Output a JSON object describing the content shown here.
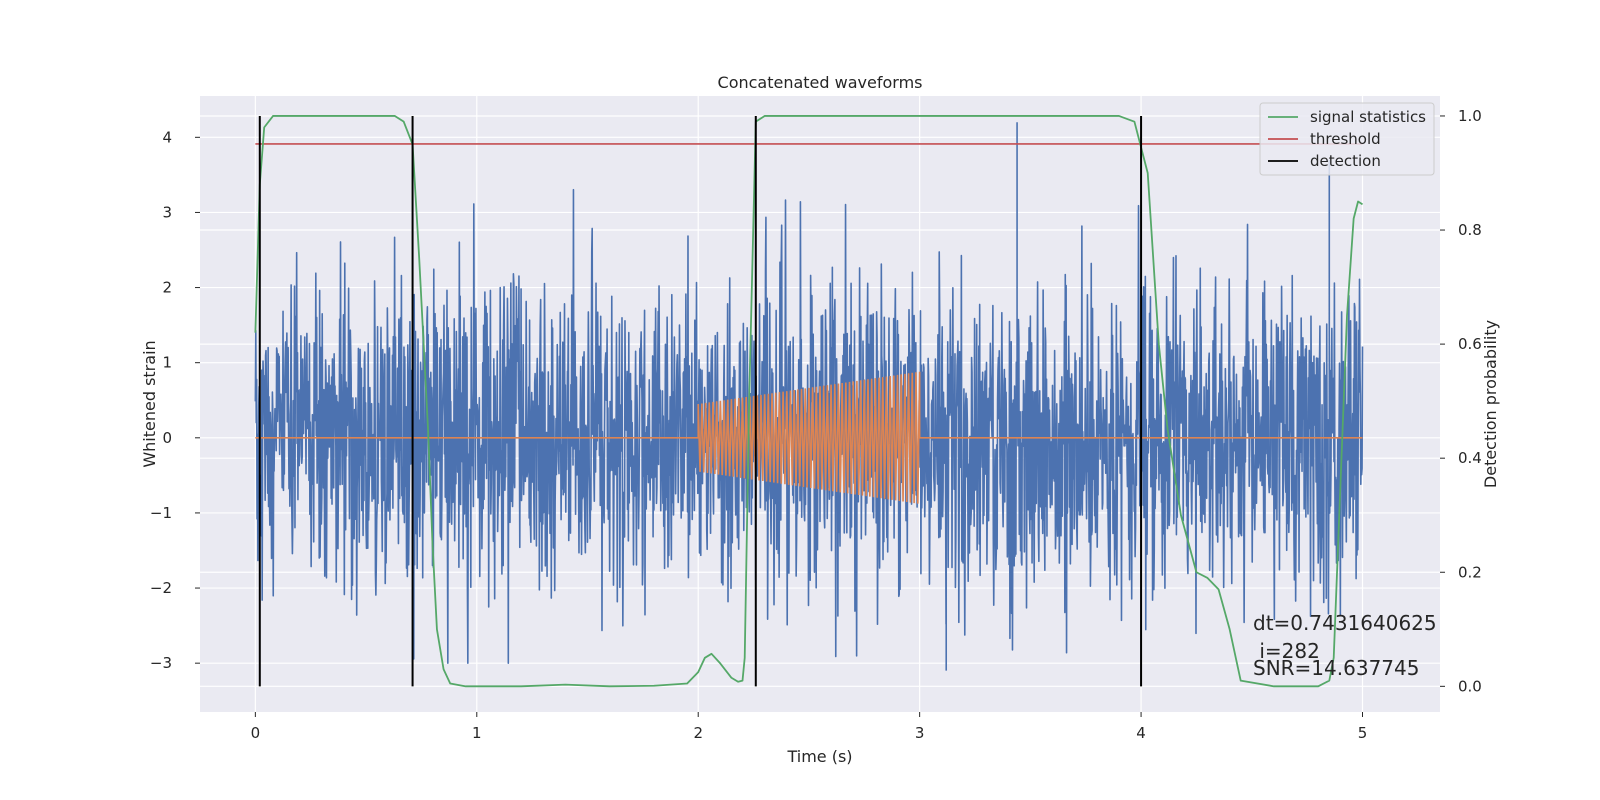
{
  "chart_data": {
    "type": "line",
    "title": "Concatenated waveforms",
    "xlabel": "Time (s)",
    "ylabel": "Whitened strain",
    "y2label": "Detection probability",
    "xlim": [
      -0.25,
      5.35
    ],
    "ylim": [
      -3.65,
      4.55
    ],
    "y2lim": [
      -0.045,
      1.035
    ],
    "xticks": [
      0,
      1,
      2,
      3,
      4,
      5
    ],
    "yticks": [
      -3,
      -2,
      -1,
      0,
      1,
      2,
      3,
      4
    ],
    "y2ticks": [
      0.0,
      0.2,
      0.4,
      0.6,
      0.8,
      1.0
    ],
    "xtick_labels": [
      "0",
      "1",
      "2",
      "3",
      "4",
      "5"
    ],
    "ytick_labels": [
      "−3",
      "−2",
      "−1",
      "0",
      "1",
      "2",
      "3",
      "4"
    ],
    "y2tick_labels": [
      "0.0",
      "0.2",
      "0.4",
      "0.6",
      "0.8",
      "1.0"
    ],
    "grid": true,
    "legend_position": "top-right",
    "legend": [
      {
        "label": "signal statistics",
        "color": "#55a868"
      },
      {
        "label": "threshold",
        "color": "#c44e52"
      },
      {
        "label": "detection",
        "color": "#000000"
      }
    ],
    "series": [
      {
        "role": "whitened strain (noise)",
        "color": "#4c72b0",
        "axis": "left",
        "x_range": [
          0,
          5
        ],
        "typical_amplitude": 1.0,
        "envelope": [
          -3.0,
          3.5
        ],
        "outliers": [
          {
            "x": 3.44,
            "y": 4.2
          },
          {
            "x": 4.85,
            "y": 3.7
          },
          {
            "x": 3.12,
            "y": -3.1
          }
        ]
      },
      {
        "role": "injected waveform",
        "color": "#dd8452",
        "axis": "left",
        "x_range": [
          0,
          5
        ],
        "chirp_start": 2.0,
        "chirp_end": 3.0,
        "amplitude_start": 0.45,
        "amplitude_end": 0.88
      },
      {
        "name": "signal statistics",
        "color": "#55a868",
        "axis": "right",
        "x": [
          0.0,
          0.02,
          0.04,
          0.08,
          0.15,
          0.3,
          0.5,
          0.63,
          0.67,
          0.71,
          0.74,
          0.78,
          0.8,
          0.82,
          0.85,
          0.88,
          0.95,
          1.2,
          1.4,
          1.6,
          1.8,
          1.95,
          2.0,
          2.03,
          2.06,
          2.1,
          2.15,
          2.18,
          2.2,
          2.21,
          2.23,
          2.26,
          2.3,
          2.5,
          3.0,
          3.5,
          3.9,
          3.97,
          4.03,
          4.08,
          4.12,
          4.18,
          4.25,
          4.3,
          4.35,
          4.4,
          4.45,
          4.6,
          4.7,
          4.8,
          4.85,
          4.87,
          4.9,
          4.93,
          4.96,
          4.98,
          5.0
        ],
        "y": [
          0.62,
          0.88,
          0.98,
          1.0,
          1.0,
          1.0,
          1.0,
          1.0,
          0.99,
          0.95,
          0.75,
          0.45,
          0.25,
          0.1,
          0.03,
          0.005,
          0.0,
          0.0,
          0.003,
          0.0,
          0.001,
          0.005,
          0.025,
          0.05,
          0.057,
          0.04,
          0.015,
          0.008,
          0.01,
          0.05,
          0.5,
          0.99,
          1.0,
          1.0,
          1.0,
          1.0,
          1.0,
          0.99,
          0.9,
          0.6,
          0.45,
          0.3,
          0.2,
          0.19,
          0.17,
          0.1,
          0.01,
          0.0,
          0.0,
          0.0,
          0.01,
          0.05,
          0.35,
          0.65,
          0.82,
          0.85,
          0.845
        ]
      },
      {
        "name": "threshold",
        "color": "#c44e52",
        "axis": "right",
        "x": [
          0,
          5
        ],
        "y": [
          0.951,
          0.951
        ]
      }
    ],
    "detections": [
      0.02,
      0.71,
      2.26,
      4.0
    ],
    "detection_line_range": [
      0.0,
      1.0
    ],
    "annotations": {
      "dt": "dt=0.7431640625",
      "i": " i=282",
      "snr": "SNR=14.637745"
    }
  }
}
